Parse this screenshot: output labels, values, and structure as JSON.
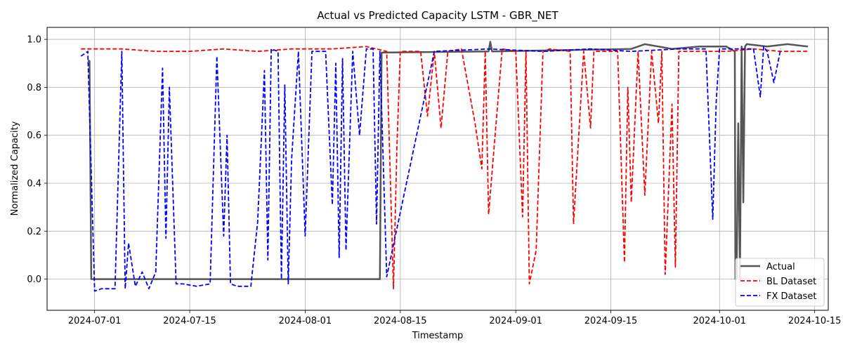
{
  "chart_data": {
    "type": "line",
    "title": "Actual vs Predicted Capacity LSTM - GBR_NET",
    "xlabel": "Timestamp",
    "ylabel": "Normalized Capacity",
    "xlim": [
      "2024-06-24",
      "2024-10-17"
    ],
    "ylim": [
      -0.13,
      1.05
    ],
    "x_ticks": [
      "2024-07-01",
      "2024-07-15",
      "2024-08-01",
      "2024-08-15",
      "2024-09-01",
      "2024-09-15",
      "2024-10-01",
      "2024-10-15"
    ],
    "y_ticks": [
      0.0,
      0.2,
      0.4,
      0.6,
      0.8,
      1.0
    ],
    "y_tick_labels": [
      "0.0",
      "0.2",
      "0.4",
      "0.6",
      "0.8",
      "1.0"
    ],
    "grid": true,
    "legend_position": "lower-right",
    "colors": {
      "actual": "#555555",
      "bl": "#ff0000",
      "fx": "#0000ff"
    },
    "series": [
      {
        "name": "Actual",
        "style": "solid",
        "x": [
          "2024-06-30",
          "2024-06-30T06:00",
          "2024-06-30T12:00",
          "2024-08-12",
          "2024-08-12T06:00",
          "2024-08-28",
          "2024-08-28T06:00",
          "2024-08-28T12:00",
          "2024-09-18",
          "2024-09-20",
          "2024-09-24",
          "2024-09-28",
          "2024-10-02",
          "2024-10-03T06:00",
          "2024-10-03T08:00",
          "2024-10-03T12:00",
          "2024-10-03T18:00",
          "2024-10-04",
          "2024-10-04T06:00",
          "2024-10-04T12:00",
          "2024-10-04T18:00",
          "2024-10-05",
          "2024-10-08",
          "2024-10-11",
          "2024-10-14"
        ],
        "y": [
          0.91,
          0.91,
          0.0,
          0.0,
          0.945,
          0.95,
          0.99,
          0.95,
          0.96,
          0.98,
          0.96,
          0.97,
          0.97,
          0.95,
          0.0,
          0.0,
          0.65,
          0.0,
          0.97,
          0.32,
          0.97,
          0.98,
          0.97,
          0.98,
          0.97
        ]
      },
      {
        "name": "BL Dataset",
        "style": "dashed",
        "x": [
          "2024-06-29",
          "2024-07-05",
          "2024-07-10",
          "2024-07-15",
          "2024-07-20",
          "2024-07-25",
          "2024-07-30",
          "2024-08-05",
          "2024-08-10",
          "2024-08-13",
          "2024-08-14",
          "2024-08-14T12:00",
          "2024-08-15",
          "2024-08-18",
          "2024-08-19",
          "2024-08-20",
          "2024-08-21",
          "2024-08-22",
          "2024-08-24",
          "2024-08-26",
          "2024-08-27",
          "2024-08-27T12:00",
          "2024-08-28",
          "2024-08-30",
          "2024-09-01",
          "2024-09-02",
          "2024-09-02T12:00",
          "2024-09-03",
          "2024-09-04",
          "2024-09-05",
          "2024-09-06",
          "2024-09-09",
          "2024-09-09T12:00",
          "2024-09-11",
          "2024-09-12",
          "2024-09-12T12:00",
          "2024-09-13",
          "2024-09-16",
          "2024-09-17",
          "2024-09-17T12:00",
          "2024-09-18",
          "2024-09-19",
          "2024-09-20",
          "2024-09-21",
          "2024-09-22",
          "2024-09-22T12:00",
          "2024-09-23",
          "2024-09-24",
          "2024-09-24T12:00",
          "2024-09-25",
          "2024-09-26",
          "2024-09-28",
          "2024-10-02",
          "2024-10-06",
          "2024-10-10",
          "2024-10-14"
        ],
        "y": [
          0.96,
          0.96,
          0.95,
          0.95,
          0.96,
          0.95,
          0.96,
          0.96,
          0.97,
          0.95,
          -0.04,
          0.55,
          0.95,
          0.95,
          0.68,
          0.95,
          0.63,
          0.95,
          0.96,
          0.65,
          0.46,
          0.95,
          0.27,
          0.96,
          0.95,
          0.26,
          0.95,
          -0.02,
          0.12,
          0.95,
          0.96,
          0.95,
          0.23,
          0.95,
          0.63,
          0.95,
          0.95,
          0.95,
          0.07,
          0.8,
          0.32,
          0.95,
          0.35,
          0.95,
          0.65,
          0.95,
          0.02,
          0.73,
          0.05,
          0.95,
          0.95,
          0.95,
          0.95,
          0.96,
          0.95,
          0.95
        ]
      },
      {
        "name": "FX Dataset",
        "style": "dashed",
        "x": [
          "2024-06-29",
          "2024-06-30",
          "2024-07-01",
          "2024-07-02",
          "2024-07-04",
          "2024-07-05",
          "2024-07-05T12:00",
          "2024-07-06",
          "2024-07-07",
          "2024-07-08",
          "2024-07-09",
          "2024-07-10",
          "2024-07-11",
          "2024-07-11T12:00",
          "2024-07-12",
          "2024-07-13",
          "2024-07-14",
          "2024-07-16",
          "2024-07-18",
          "2024-07-19",
          "2024-07-20",
          "2024-07-20T12:00",
          "2024-07-21",
          "2024-07-22",
          "2024-07-24",
          "2024-07-25",
          "2024-07-26",
          "2024-07-26T12:00",
          "2024-07-27",
          "2024-07-28",
          "2024-07-28T12:00",
          "2024-07-29",
          "2024-07-29T12:00",
          "2024-07-30",
          "2024-07-31",
          "2024-08-01",
          "2024-08-02",
          "2024-08-03",
          "2024-08-04",
          "2024-08-05",
          "2024-08-05T12:00",
          "2024-08-06",
          "2024-08-06T12:00",
          "2024-08-07",
          "2024-08-08",
          "2024-08-09",
          "2024-08-10",
          "2024-08-11",
          "2024-08-11T12:00",
          "2024-08-12",
          "2024-08-13",
          "2024-08-20",
          "2024-08-28",
          "2024-09-05",
          "2024-09-12",
          "2024-09-18",
          "2024-09-25",
          "2024-09-29",
          "2024-09-30",
          "2024-09-30T12:00",
          "2024-10-01",
          "2024-10-04",
          "2024-10-06",
          "2024-10-07",
          "2024-10-07T12:00",
          "2024-10-08",
          "2024-10-09",
          "2024-10-10"
        ],
        "y": [
          0.93,
          0.95,
          -0.05,
          -0.04,
          -0.04,
          0.95,
          -0.04,
          0.15,
          -0.03,
          0.03,
          -0.04,
          0.03,
          0.88,
          0.17,
          0.8,
          -0.02,
          -0.02,
          -0.03,
          -0.02,
          0.93,
          0.18,
          0.6,
          -0.02,
          -0.03,
          -0.03,
          0.24,
          0.87,
          0.08,
          0.96,
          0.95,
          0.0,
          0.81,
          -0.02,
          0.5,
          0.95,
          0.18,
          0.95,
          0.95,
          0.95,
          0.31,
          0.9,
          0.09,
          0.92,
          0.12,
          0.95,
          0.6,
          0.96,
          0.96,
          0.23,
          0.95,
          0.01,
          0.95,
          0.96,
          0.95,
          0.96,
          0.95,
          0.96,
          0.96,
          0.25,
          0.74,
          0.96,
          0.96,
          0.96,
          0.76,
          0.97,
          0.95,
          0.82,
          0.96
        ]
      }
    ]
  }
}
